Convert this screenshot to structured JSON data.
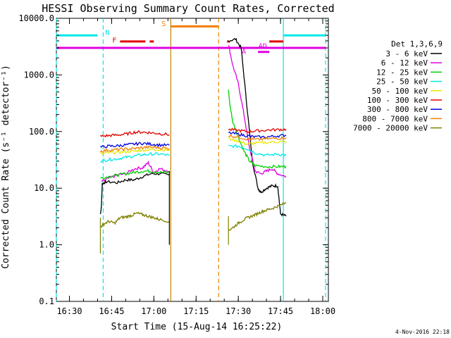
{
  "chart_data": {
    "type": "line",
    "title": "HESSI Observing Summary Count Rates, Corrected",
    "ylabel": "Corrected Count Rate (s⁻¹ detector⁻¹)",
    "xlabel": "Start Time (15-Aug-14 16:25:22)",
    "timestamp": "4-Nov-2016 22:18",
    "y_scale": "log",
    "ylim": [
      0.1,
      10000
    ],
    "xlim_minutes": [
      "16:25:22",
      "18:02"
    ],
    "y_ticks": [
      {
        "value": 10000,
        "label": "10000.0"
      },
      {
        "value": 1000,
        "label": "1000.0"
      },
      {
        "value": 100,
        "label": "100.0"
      },
      {
        "value": 10,
        "label": "10.0"
      },
      {
        "value": 1,
        "label": "1.0"
      },
      {
        "value": 0.1,
        "label": "0.1"
      }
    ],
    "x_ticks": [
      {
        "time": "16:30",
        "label": "16:30"
      },
      {
        "time": "16:45",
        "label": "16:45"
      },
      {
        "time": "17:00",
        "label": "17:00"
      },
      {
        "time": "17:15",
        "label": "17:15"
      },
      {
        "time": "17:30",
        "label": "17:30"
      },
      {
        "time": "17:45",
        "label": "17:45"
      },
      {
        "time": "18:00",
        "label": "18:00"
      }
    ],
    "legend": {
      "placement": "right",
      "header": "Det 1,3,6,9",
      "entries": [
        {
          "label": "3 - 6 keV",
          "color": "#000000"
        },
        {
          "label": "6 - 12 keV",
          "color": "#e000e0"
        },
        {
          "label": "12 - 25 keV",
          "color": "#00d000"
        },
        {
          "label": "25 - 50 keV",
          "color": "#00e8e8"
        },
        {
          "label": "50 - 100 keV",
          "color": "#e8e800"
        },
        {
          "label": "100 - 300 keV",
          "color": "#e00000"
        },
        {
          "label": "300 - 800 keV",
          "color": "#0000e0"
        },
        {
          "label": "800 - 7000 keV",
          "color": "#f08000"
        },
        {
          "label": "7000 - 20000 keV",
          "color": "#808000"
        }
      ]
    },
    "series": [
      {
        "name": "3 - 6 keV",
        "color": "#000000",
        "segments": [
          [
            [
              "16:41:00",
              3.5
            ],
            [
              "16:41:20",
              4.5
            ],
            [
              "16:41:40",
              12
            ],
            [
              "16:43",
              13
            ],
            [
              "16:47",
              12.5
            ],
            [
              "16:50",
              14
            ],
            [
              "16:53",
              14
            ],
            [
              "16:56",
              16
            ],
            [
              "16:59",
              18
            ],
            [
              "17:02",
              18
            ],
            [
              "17:05:30",
              17
            ]
          ],
          [
            [
              "17:26:30",
              4000
            ],
            [
              "17:29",
              4300
            ],
            [
              "17:31",
              3000
            ],
            [
              "17:33",
              300
            ],
            [
              "17:35",
              30
            ],
            [
              "17:37",
              10
            ],
            [
              "17:38",
              8.5
            ],
            [
              "17:40",
              10
            ],
            [
              "17:42",
              11
            ],
            [
              "17:44",
              11
            ],
            [
              "17:45",
              3.5
            ],
            [
              "17:47",
              3.2
            ]
          ]
        ]
      },
      {
        "name": "6 - 12 keV",
        "color": "#e000e0",
        "segments": [
          [
            [
              "16:41:30",
              13
            ],
            [
              "16:44",
              15
            ],
            [
              "16:47",
              17
            ],
            [
              "16:50",
              18
            ],
            [
              "16:53",
              22
            ],
            [
              "16:56",
              23
            ],
            [
              "16:58",
              28
            ],
            [
              "17:00",
              19
            ],
            [
              "17:02",
              22
            ],
            [
              "17:05:30",
              20
            ]
          ],
          [
            [
              "17:26:30",
              3500
            ],
            [
              "17:28",
              1500
            ],
            [
              "17:30",
              700
            ],
            [
              "17:32",
              200
            ],
            [
              "17:34",
              50
            ],
            [
              "17:36",
              20
            ],
            [
              "17:38",
              18
            ],
            [
              "17:40",
              20
            ],
            [
              "17:42",
              22
            ],
            [
              "17:44",
              18
            ],
            [
              "17:47",
              16
            ]
          ]
        ]
      },
      {
        "name": "12 - 25 keV",
        "color": "#00d000",
        "segments": [
          [
            [
              "16:41:00",
              15
            ],
            [
              "16:44",
              16
            ],
            [
              "16:47",
              17
            ],
            [
              "16:50",
              18
            ],
            [
              "16:53",
              19
            ],
            [
              "16:56",
              20
            ],
            [
              "16:59",
              20
            ],
            [
              "17:02",
              19
            ],
            [
              "17:05:30",
              19
            ]
          ],
          [
            [
              "17:26:30",
              550
            ],
            [
              "17:27",
              300
            ],
            [
              "17:28",
              150
            ],
            [
              "17:30",
              80
            ],
            [
              "17:32",
              45
            ],
            [
              "17:34",
              30
            ],
            [
              "17:36",
              25
            ],
            [
              "17:40",
              24
            ],
            [
              "17:44",
              24
            ],
            [
              "17:47",
              24
            ]
          ]
        ]
      },
      {
        "name": "25 - 50 keV",
        "color": "#00e8e8",
        "segments": [
          [
            [
              "16:41:00",
              30
            ],
            [
              "16:44",
              32
            ],
            [
              "16:47",
              33
            ],
            [
              "16:50",
              35
            ],
            [
              "16:53",
              37
            ],
            [
              "16:56",
              39
            ],
            [
              "16:59",
              40
            ],
            [
              "17:02",
              40
            ],
            [
              "17:05:30",
              38
            ]
          ],
          [
            [
              "17:26:30",
              55
            ],
            [
              "17:30",
              55
            ],
            [
              "17:33",
              50
            ],
            [
              "17:36",
              42
            ],
            [
              "17:40",
              38
            ],
            [
              "17:44",
              40
            ],
            [
              "17:47",
              38
            ]
          ]
        ]
      },
      {
        "name": "50 - 100 keV",
        "color": "#e8e800",
        "segments": [
          [
            [
              "16:41:00",
              40
            ],
            [
              "16:44",
              42
            ],
            [
              "16:47",
              43
            ],
            [
              "16:50",
              44
            ],
            [
              "16:53",
              45
            ],
            [
              "16:56",
              47
            ],
            [
              "16:59",
              48
            ],
            [
              "17:02",
              48
            ],
            [
              "17:05:30",
              47
            ]
          ],
          [
            [
              "17:26:30",
              75
            ],
            [
              "17:30",
              68
            ],
            [
              "17:33",
              60
            ],
            [
              "17:36",
              62
            ],
            [
              "17:40",
              64
            ],
            [
              "17:44",
              66
            ],
            [
              "17:47",
              66
            ]
          ]
        ]
      },
      {
        "name": "100 - 300 keV",
        "color": "#e00000",
        "segments": [
          [
            [
              "16:41:00",
              82
            ],
            [
              "16:44",
              85
            ],
            [
              "16:47",
              87
            ],
            [
              "16:50",
              90
            ],
            [
              "16:53",
              97
            ],
            [
              "16:56",
              98
            ],
            [
              "16:59",
              95
            ],
            [
              "17:02",
              92
            ],
            [
              "17:05:30",
              88
            ]
          ],
          [
            [
              "17:26:30",
              108
            ],
            [
              "17:30",
              105
            ],
            [
              "17:33",
              100
            ],
            [
              "17:36",
              102
            ],
            [
              "17:40",
              106
            ],
            [
              "17:44",
              108
            ],
            [
              "17:47",
              110
            ]
          ]
        ]
      },
      {
        "name": "300 - 800 keV",
        "color": "#0000e0",
        "segments": [
          [
            [
              "16:41:00",
              53
            ],
            [
              "16:44",
              55
            ],
            [
              "16:47",
              56
            ],
            [
              "16:50",
              58
            ],
            [
              "16:53",
              60
            ],
            [
              "16:56",
              62
            ],
            [
              "16:59",
              60
            ],
            [
              "17:02",
              58
            ],
            [
              "17:05:30",
              57
            ]
          ],
          [
            [
              "17:26:30",
              95
            ],
            [
              "17:30",
              90
            ],
            [
              "17:33",
              84
            ],
            [
              "17:36",
              80
            ],
            [
              "17:40",
              80
            ],
            [
              "17:44",
              84
            ],
            [
              "17:47",
              86
            ]
          ]
        ]
      },
      {
        "name": "800 - 7000 keV",
        "color": "#f08000",
        "segments": [
          [
            [
              "16:41:00",
              45
            ],
            [
              "16:44",
              47
            ],
            [
              "16:47",
              48
            ],
            [
              "16:50",
              49
            ],
            [
              "16:53",
              50
            ],
            [
              "16:56",
              52
            ],
            [
              "16:59",
              53
            ],
            [
              "17:02",
              52
            ],
            [
              "17:05:30",
              50
            ]
          ],
          [
            [
              "17:26:30",
              85
            ],
            [
              "17:30",
              80
            ],
            [
              "17:33",
              74
            ],
            [
              "17:36",
              72
            ],
            [
              "17:40",
              74
            ],
            [
              "17:44",
              76
            ],
            [
              "17:47",
              78
            ]
          ]
        ]
      },
      {
        "name": "7000 - 20000 keV",
        "color": "#808000",
        "segments": [
          [
            [
              "16:41:00",
              2.0
            ],
            [
              "16:42",
              2.3
            ],
            [
              "16:44",
              2.6
            ],
            [
              "16:46",
              2.4
            ],
            [
              "16:48",
              3.0
            ],
            [
              "16:50",
              3.1
            ],
            [
              "16:52",
              3.3
            ],
            [
              "16:54",
              3.6
            ],
            [
              "16:56",
              3.4
            ],
            [
              "16:58",
              3.2
            ],
            [
              "17:00",
              3.0
            ],
            [
              "17:02",
              2.8
            ],
            [
              "17:05:30",
              2.6
            ]
          ],
          [
            [
              "17:26:30",
              1.8
            ],
            [
              "17:28",
              2.0
            ],
            [
              "17:30",
              2.4
            ],
            [
              "17:32",
              2.8
            ],
            [
              "17:34",
              3.1
            ],
            [
              "17:36",
              3.4
            ],
            [
              "17:38",
              3.8
            ],
            [
              "17:40",
              4.1
            ],
            [
              "17:42",
              4.4
            ],
            [
              "17:44",
              4.8
            ],
            [
              "17:47",
              5.5
            ]
          ]
        ]
      }
    ],
    "spikes": [
      {
        "time": "16:41:00",
        "low": 0.7,
        "high": 3.0,
        "color": "#808000"
      },
      {
        "time": "17:05:30",
        "low": 1.0,
        "high": 20,
        "color": "#000000"
      },
      {
        "time": "17:26:30",
        "low": 1.0,
        "high": 3.2,
        "color": "#808000"
      }
    ],
    "vertical_markers": [
      {
        "time": "16:25:22",
        "color": "#00e8e8",
        "style": "dash"
      },
      {
        "time": "16:42:00",
        "color": "#00e8e8",
        "style": "dash"
      },
      {
        "time": "17:06:00",
        "color": "#c08000",
        "style": "solid"
      },
      {
        "time": "17:23:00",
        "color": "#f08000",
        "style": "dash"
      },
      {
        "time": "17:46:00",
        "color": "#00e8e8",
        "style": "solid"
      },
      {
        "time": "18:01:00",
        "color": "#00e8e8",
        "style": "dash"
      }
    ],
    "flag_bars": [
      {
        "start": "16:25:22",
        "end": "16:40:00",
        "level": 5000,
        "color": "#00e8e8",
        "width": 3
      },
      {
        "start": "17:06:00",
        "end": "17:23:00",
        "level": 7200,
        "color": "#f08000",
        "width": 3
      },
      {
        "start": "16:48:00",
        "end": "16:57:00",
        "level": 3900,
        "color": "#e00000",
        "width": 3
      },
      {
        "start": "16:58:30",
        "end": "17:00:00",
        "level": 3900,
        "color": "#e00000",
        "width": 3
      },
      {
        "start": "17:26:00",
        "end": "17:26:40",
        "level": 3900,
        "color": "#e00000",
        "width": 3
      },
      {
        "start": "17:41:00",
        "end": "17:46:00",
        "level": 3900,
        "color": "#e00000",
        "width": 3
      },
      {
        "start": "17:46:00",
        "end": "18:01:00",
        "level": 5000,
        "color": "#00e8e8",
        "width": 3
      },
      {
        "start": "17:37:00",
        "end": "17:41:00",
        "level": 2550,
        "color": "#e000e0",
        "width": 3
      },
      {
        "start": "16:25:22",
        "end": "18:01:00",
        "level": 3000,
        "color": "#e000e0",
        "width": 3
      }
    ],
    "flag_labels": [
      {
        "text": "N",
        "time": "16:43:30",
        "level": 5100,
        "color": "#00e8e8"
      },
      {
        "text": "F",
        "time": "16:46:00",
        "level": 3700,
        "color": "#e00000"
      },
      {
        "text": "S",
        "time": "17:03:30",
        "level": 7300,
        "color": "#f08000"
      },
      {
        "text": "A",
        "time": "17:32:00",
        "level": 2350,
        "color": "#e000e0"
      },
      {
        "text": "AD",
        "time": "17:38:40",
        "level": 2950,
        "color": "#e000e0"
      }
    ]
  }
}
